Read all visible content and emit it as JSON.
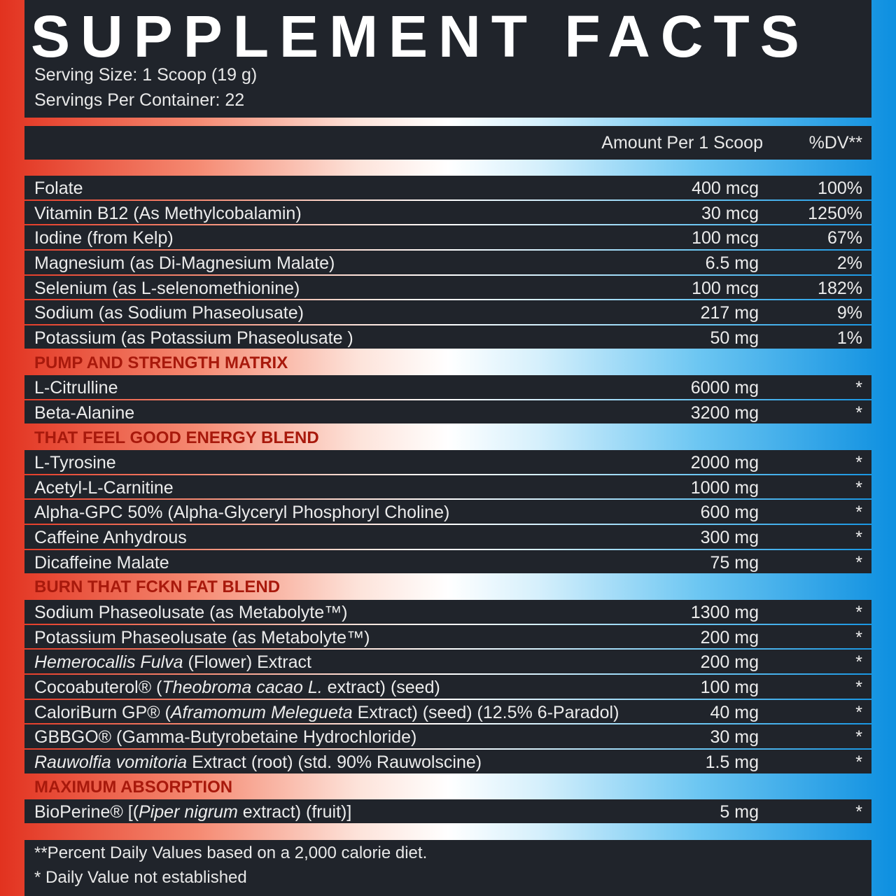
{
  "title": "SUPPLEMENT FACTS",
  "serving_size": "Serving Size: 1 Scoop (19 g)",
  "servings_per_container": "Servings Per Container: 22",
  "table": {
    "header": {
      "amount": "Amount Per 1 Scoop",
      "dv": "%DV**"
    },
    "rows": [
      {
        "name": [
          {
            "text": "Folate"
          }
        ],
        "amount": "400 mcg",
        "dv": "100%"
      },
      {
        "name": [
          {
            "text": "Vitamin B12 (As Methylcobalamin)"
          }
        ],
        "amount": "30 mcg",
        "dv": "1250%"
      },
      {
        "name": [
          {
            "text": "Iodine (from Kelp)"
          }
        ],
        "amount": "100 mcg",
        "dv": "67%"
      },
      {
        "name": [
          {
            "text": "Magnesium (as Di-Magnesium Malate)"
          }
        ],
        "amount": "6.5 mg",
        "dv": "2%"
      },
      {
        "name": [
          {
            "text": "Selenium (as L-selenomethionine)"
          }
        ],
        "amount": "100 mcg",
        "dv": "182%"
      },
      {
        "name": [
          {
            "text": "Sodium (as Sodium Phaseolusate)"
          }
        ],
        "amount": "217 mg",
        "dv": "9%"
      },
      {
        "name": [
          {
            "text": "Potassium (as Potassium Phaseolusate )"
          }
        ],
        "amount": "50 mg",
        "dv": "1%"
      },
      {
        "section": "PUMP AND STRENGTH MATRIX"
      },
      {
        "name": [
          {
            "text": "L-Citrulline"
          }
        ],
        "amount": "6000 mg",
        "dv": "*"
      },
      {
        "name": [
          {
            "text": "Beta-Alanine"
          }
        ],
        "amount": "3200 mg",
        "dv": "*"
      },
      {
        "section": "THAT FEEL GOOD ENERGY BLEND"
      },
      {
        "name": [
          {
            "text": "L-Tyrosine"
          }
        ],
        "amount": "2000 mg",
        "dv": "*"
      },
      {
        "name": [
          {
            "text": "Acetyl-L-Carnitine"
          }
        ],
        "amount": "1000 mg",
        "dv": "*"
      },
      {
        "name": [
          {
            "text": "Alpha-GPC 50% (Alpha-Glyceryl Phosphoryl Choline)"
          }
        ],
        "amount": "600 mg",
        "dv": "*"
      },
      {
        "name": [
          {
            "text": "Caffeine Anhydrous"
          }
        ],
        "amount": "300 mg",
        "dv": "*"
      },
      {
        "name": [
          {
            "text": "Dicaffeine Malate"
          }
        ],
        "amount": "75 mg",
        "dv": "*"
      },
      {
        "section": "BURN THAT FCKN FAT BLEND"
      },
      {
        "name": [
          {
            "text": "Sodium Phaseolusate (as Metabolyte™)"
          }
        ],
        "amount": "1300 mg",
        "dv": "*"
      },
      {
        "name": [
          {
            "text": "Potassium Phaseolusate (as Metabolyte™)"
          }
        ],
        "amount": "200 mg",
        "dv": "*"
      },
      {
        "name": [
          {
            "text": "Hemerocallis Fulva",
            "italic": true
          },
          {
            "text": " (Flower) Extract"
          }
        ],
        "amount": "200 mg",
        "dv": "*"
      },
      {
        "name": [
          {
            "text": "Cocoabuterol® ("
          },
          {
            "text": "Theobroma cacao L.",
            "italic": true
          },
          {
            "text": " extract) (seed)"
          }
        ],
        "amount": "100 mg",
        "dv": "*"
      },
      {
        "name": [
          {
            "text": "CaloriBurn GP® ("
          },
          {
            "text": "Aframomum Melegueta",
            "italic": true
          },
          {
            "text": " Extract) (seed) (12.5% 6-Paradol)"
          }
        ],
        "amount": "40 mg",
        "dv": "*"
      },
      {
        "name": [
          {
            "text": "GBBGO® (Gamma-Butyrobetaine Hydrochloride)"
          }
        ],
        "amount": "30 mg",
        "dv": "*"
      },
      {
        "name": [
          {
            "text": "Rauwolfia vomitoria",
            "italic": true
          },
          {
            "text": " Extract (root) (std. 90% Rauwolscine)"
          }
        ],
        "amount": "1.5 mg",
        "dv": "*"
      },
      {
        "section": "MAXIMUM ABSORPTION"
      },
      {
        "name": [
          {
            "text": "BioPerine® [("
          },
          {
            "text": "Piper nigrum",
            "italic": true
          },
          {
            "text": " extract) (fruit)]"
          }
        ],
        "amount": "5 mg",
        "dv": "*"
      }
    ]
  },
  "footnotes": [
    "**Percent Daily Values based on a 2,000 calorie diet.",
    "* Daily Value not established"
  ]
}
